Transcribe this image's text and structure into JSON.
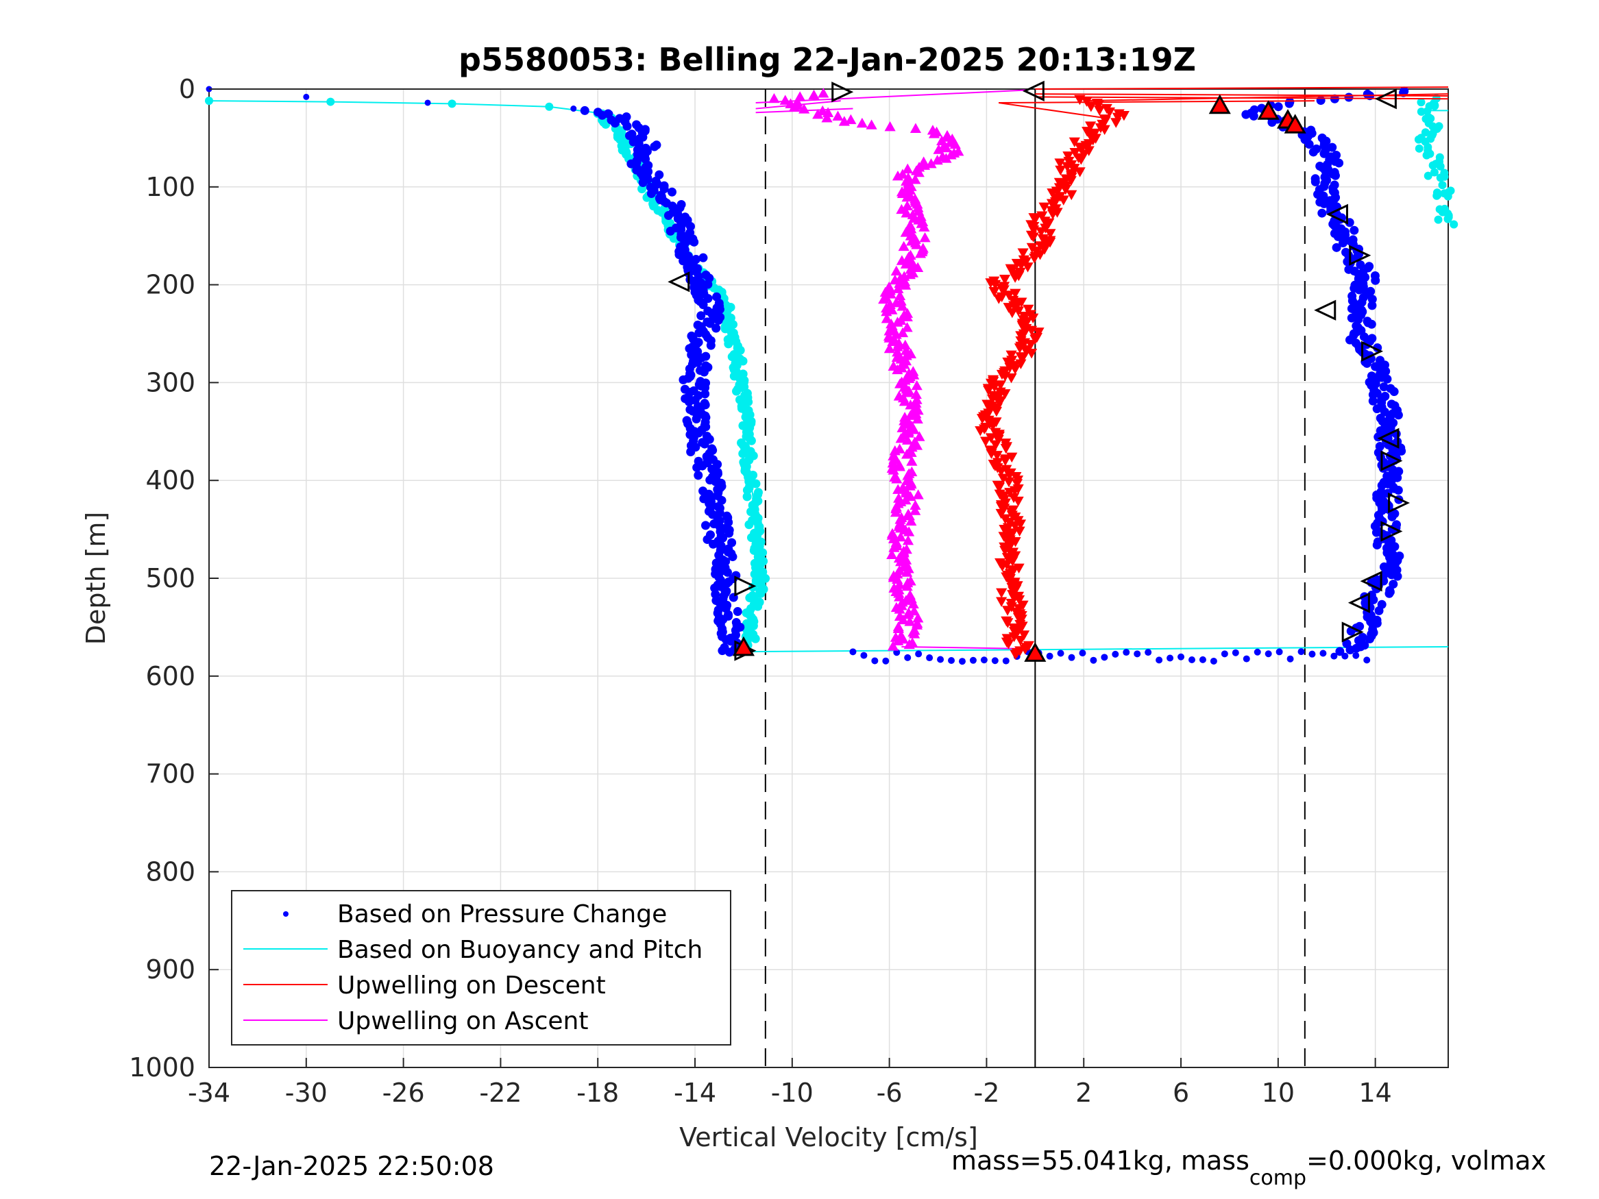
{
  "chart_data": {
    "type": "scatter",
    "title": "p5580053: Belling 22-Jan-2025 20:13:19Z",
    "xlabel": "Vertical Velocity [cm/s]",
    "ylabel": "Depth [m]",
    "xlim": [
      -34,
      17
    ],
    "ylim": [
      0,
      1000
    ],
    "y_reversed": true,
    "grid": true,
    "xticks": [
      -34,
      -30,
      -26,
      -22,
      -18,
      -14,
      -10,
      -6,
      -2,
      2,
      6,
      10,
      14
    ],
    "xtick_labels": [
      "-34",
      "-30",
      "-26",
      "-22",
      "-18",
      "-14",
      "-10",
      "-6",
      "-2",
      "2",
      "6",
      "10",
      "14"
    ],
    "yticks": [
      0,
      100,
      200,
      300,
      400,
      500,
      600,
      700,
      800,
      900,
      1000
    ],
    "ytick_labels": [
      "0",
      "100",
      "200",
      "300",
      "400",
      "500",
      "600",
      "700",
      "800",
      "900",
      "1000"
    ],
    "reference_lines": [
      {
        "x": -11.1,
        "style": "dashed"
      },
      {
        "x": 0,
        "style": "solid"
      },
      {
        "x": 11.1,
        "style": "dashed"
      }
    ],
    "legend_position": "bottom-left",
    "series": [
      {
        "name": "Based on Pressure Change",
        "color": "#0000ff",
        "style": "dots",
        "descent_profile": [
          [
            0,
            -34
          ],
          [
            8,
            -30
          ],
          [
            14,
            -25
          ],
          [
            20,
            -19
          ],
          [
            25,
            -17.5
          ],
          [
            40,
            -16.5
          ],
          [
            60,
            -16
          ],
          [
            80,
            -16.2
          ],
          [
            100,
            -15.5
          ],
          [
            120,
            -15
          ],
          [
            150,
            -14.5
          ],
          [
            180,
            -14
          ],
          [
            200,
            -13.6
          ],
          [
            230,
            -13.4
          ],
          [
            260,
            -13.8
          ],
          [
            300,
            -14
          ],
          [
            340,
            -14
          ],
          [
            380,
            -13.6
          ],
          [
            420,
            -13.2
          ],
          [
            460,
            -13
          ],
          [
            500,
            -12.7
          ],
          [
            540,
            -12.7
          ],
          [
            575,
            -12.4
          ]
        ],
        "ascent_profile": [
          [
            575,
            13
          ],
          [
            560,
            13.4
          ],
          [
            530,
            13.8
          ],
          [
            500,
            14.4
          ],
          [
            470,
            14.6
          ],
          [
            440,
            14.4
          ],
          [
            400,
            14.6
          ],
          [
            360,
            14.6
          ],
          [
            320,
            14.4
          ],
          [
            280,
            14
          ],
          [
            250,
            13.3
          ],
          [
            220,
            13.5
          ],
          [
            195,
            13.6
          ],
          [
            170,
            13
          ],
          [
            140,
            12.6
          ],
          [
            110,
            11.9
          ],
          [
            80,
            12.1
          ],
          [
            60,
            11.9
          ],
          [
            45,
            11.2
          ],
          [
            35,
            10.3
          ],
          [
            25,
            9
          ],
          [
            15,
            10
          ],
          [
            8,
            13
          ],
          [
            2,
            15.5
          ]
        ],
        "turnaround_band": {
          "depth_range": [
            575,
            585
          ],
          "x_range": [
            -7.5,
            14
          ]
        }
      },
      {
        "name": "Based on Buoyancy and Pitch",
        "color": "#00eeee",
        "style": "line",
        "descent_profile": [
          [
            12,
            -34
          ],
          [
            13,
            -29
          ],
          [
            15,
            -24
          ],
          [
            18,
            -20
          ],
          [
            25,
            -17.8
          ],
          [
            50,
            -17
          ],
          [
            80,
            -16.4
          ],
          [
            110,
            -15.8
          ],
          [
            140,
            -15
          ],
          [
            170,
            -14.3
          ],
          [
            200,
            -13.4
          ],
          [
            220,
            -12.7
          ],
          [
            260,
            -12.4
          ],
          [
            300,
            -12.1
          ],
          [
            340,
            -11.9
          ],
          [
            380,
            -11.8
          ],
          [
            420,
            -11.6
          ],
          [
            460,
            -11.5
          ],
          [
            500,
            -11.3
          ],
          [
            540,
            -11.7
          ],
          [
            570,
            -11.7
          ],
          [
            575,
            -11.8
          ]
        ],
        "ascent_profile": [
          [
            570,
            17
          ],
          [
            575,
            -11.8
          ]
        ],
        "surface_cluster": [
          [
            20,
            16.2
          ],
          [
            40,
            16.4
          ],
          [
            60,
            16.1
          ],
          [
            80,
            16.5
          ],
          [
            100,
            16.8
          ],
          [
            130,
            16.9
          ]
        ]
      },
      {
        "name": "Upwelling on Descent",
        "color": "#ff0000",
        "style": "down-triangles",
        "profile": [
          [
            0,
            0
          ],
          [
            10,
            2
          ],
          [
            25,
            3.5
          ],
          [
            40,
            2.5
          ],
          [
            70,
            1.5
          ],
          [
            100,
            1.3
          ],
          [
            130,
            0.3
          ],
          [
            160,
            0.2
          ],
          [
            200,
            -1.5
          ],
          [
            240,
            -0.2
          ],
          [
            270,
            -0.5
          ],
          [
            300,
            -1.5
          ],
          [
            340,
            -2
          ],
          [
            380,
            -1.3
          ],
          [
            420,
            -1
          ],
          [
            460,
            -1
          ],
          [
            500,
            -1
          ],
          [
            540,
            -0.9
          ],
          [
            570,
            -0.7
          ],
          [
            580,
            -0.5
          ]
        ],
        "tail_lines_to_right": true
      },
      {
        "name": "Upwelling on Ascent",
        "color": "#ff00ff",
        "style": "up-triangles",
        "profile": [
          [
            570,
            -5.5
          ],
          [
            540,
            -5.2
          ],
          [
            500,
            -5.5
          ],
          [
            460,
            -5.6
          ],
          [
            420,
            -5.2
          ],
          [
            380,
            -5.5
          ],
          [
            340,
            -5
          ],
          [
            300,
            -5.3
          ],
          [
            260,
            -5.6
          ],
          [
            230,
            -5.7
          ],
          [
            210,
            -6
          ],
          [
            180,
            -5.1
          ],
          [
            140,
            -4.9
          ],
          [
            110,
            -5.3
          ],
          [
            90,
            -5.4
          ],
          [
            65,
            -3.5
          ],
          [
            45,
            -3.8
          ],
          [
            35,
            -7.5
          ],
          [
            20,
            -9.5
          ],
          [
            10,
            -10.5
          ],
          [
            5,
            -9
          ]
        ],
        "surface_lines_to": -11.5
      }
    ],
    "markers": {
      "open_triangles": [
        {
          "depth": 3,
          "x": -8,
          "dir": "right"
        },
        {
          "depth": 2,
          "x": 0,
          "dir": "left"
        },
        {
          "depth": 10,
          "x": 14.5,
          "dir": "left"
        },
        {
          "depth": 197,
          "x": -14.6,
          "dir": "left"
        },
        {
          "depth": 128,
          "x": 12.5,
          "dir": "left"
        },
        {
          "depth": 170,
          "x": 13.3,
          "dir": "right"
        },
        {
          "depth": 226,
          "x": 12,
          "dir": "left"
        },
        {
          "depth": 268,
          "x": 13.8,
          "dir": "right"
        },
        {
          "depth": 357,
          "x": 14.6,
          "dir": "left"
        },
        {
          "depth": 380,
          "x": 14.6,
          "dir": "right"
        },
        {
          "depth": 423,
          "x": 14.9,
          "dir": "right"
        },
        {
          "depth": 452,
          "x": 14.6,
          "dir": "right"
        },
        {
          "depth": 503,
          "x": 13.9,
          "dir": "left"
        },
        {
          "depth": 508,
          "x": -12,
          "dir": "right"
        },
        {
          "depth": 525,
          "x": 13.4,
          "dir": "left"
        },
        {
          "depth": 555,
          "x": 13,
          "dir": "right"
        },
        {
          "depth": 574,
          "x": -12,
          "dir": "right"
        }
      ],
      "filled_up_triangles": [
        {
          "depth": 18,
          "x": 7.6
        },
        {
          "depth": 24,
          "x": 9.6
        },
        {
          "depth": 33,
          "x": 10.4
        },
        {
          "depth": 38,
          "x": 10.7
        },
        {
          "depth": 572,
          "x": -12
        },
        {
          "depth": 578,
          "x": 0
        }
      ]
    }
  },
  "legend": {
    "items": [
      {
        "label": "Based on Pressure Change",
        "color": "#0000ff",
        "kind": "dot"
      },
      {
        "label": "Based on Buoyancy and Pitch",
        "color": "#00eeee",
        "kind": "line"
      },
      {
        "label": "Upwelling on Descent",
        "color": "#ff0000",
        "kind": "line"
      },
      {
        "label": "Upwelling on Ascent",
        "color": "#ff00ff",
        "kind": "line"
      }
    ]
  },
  "footer": {
    "timestamp": "22-Jan-2025 22:50:08",
    "mass_prefix": "mass=55.041kg, mass",
    "mass_sub": "comp",
    "mass_suffix": "=0.000kg, volmax"
  }
}
